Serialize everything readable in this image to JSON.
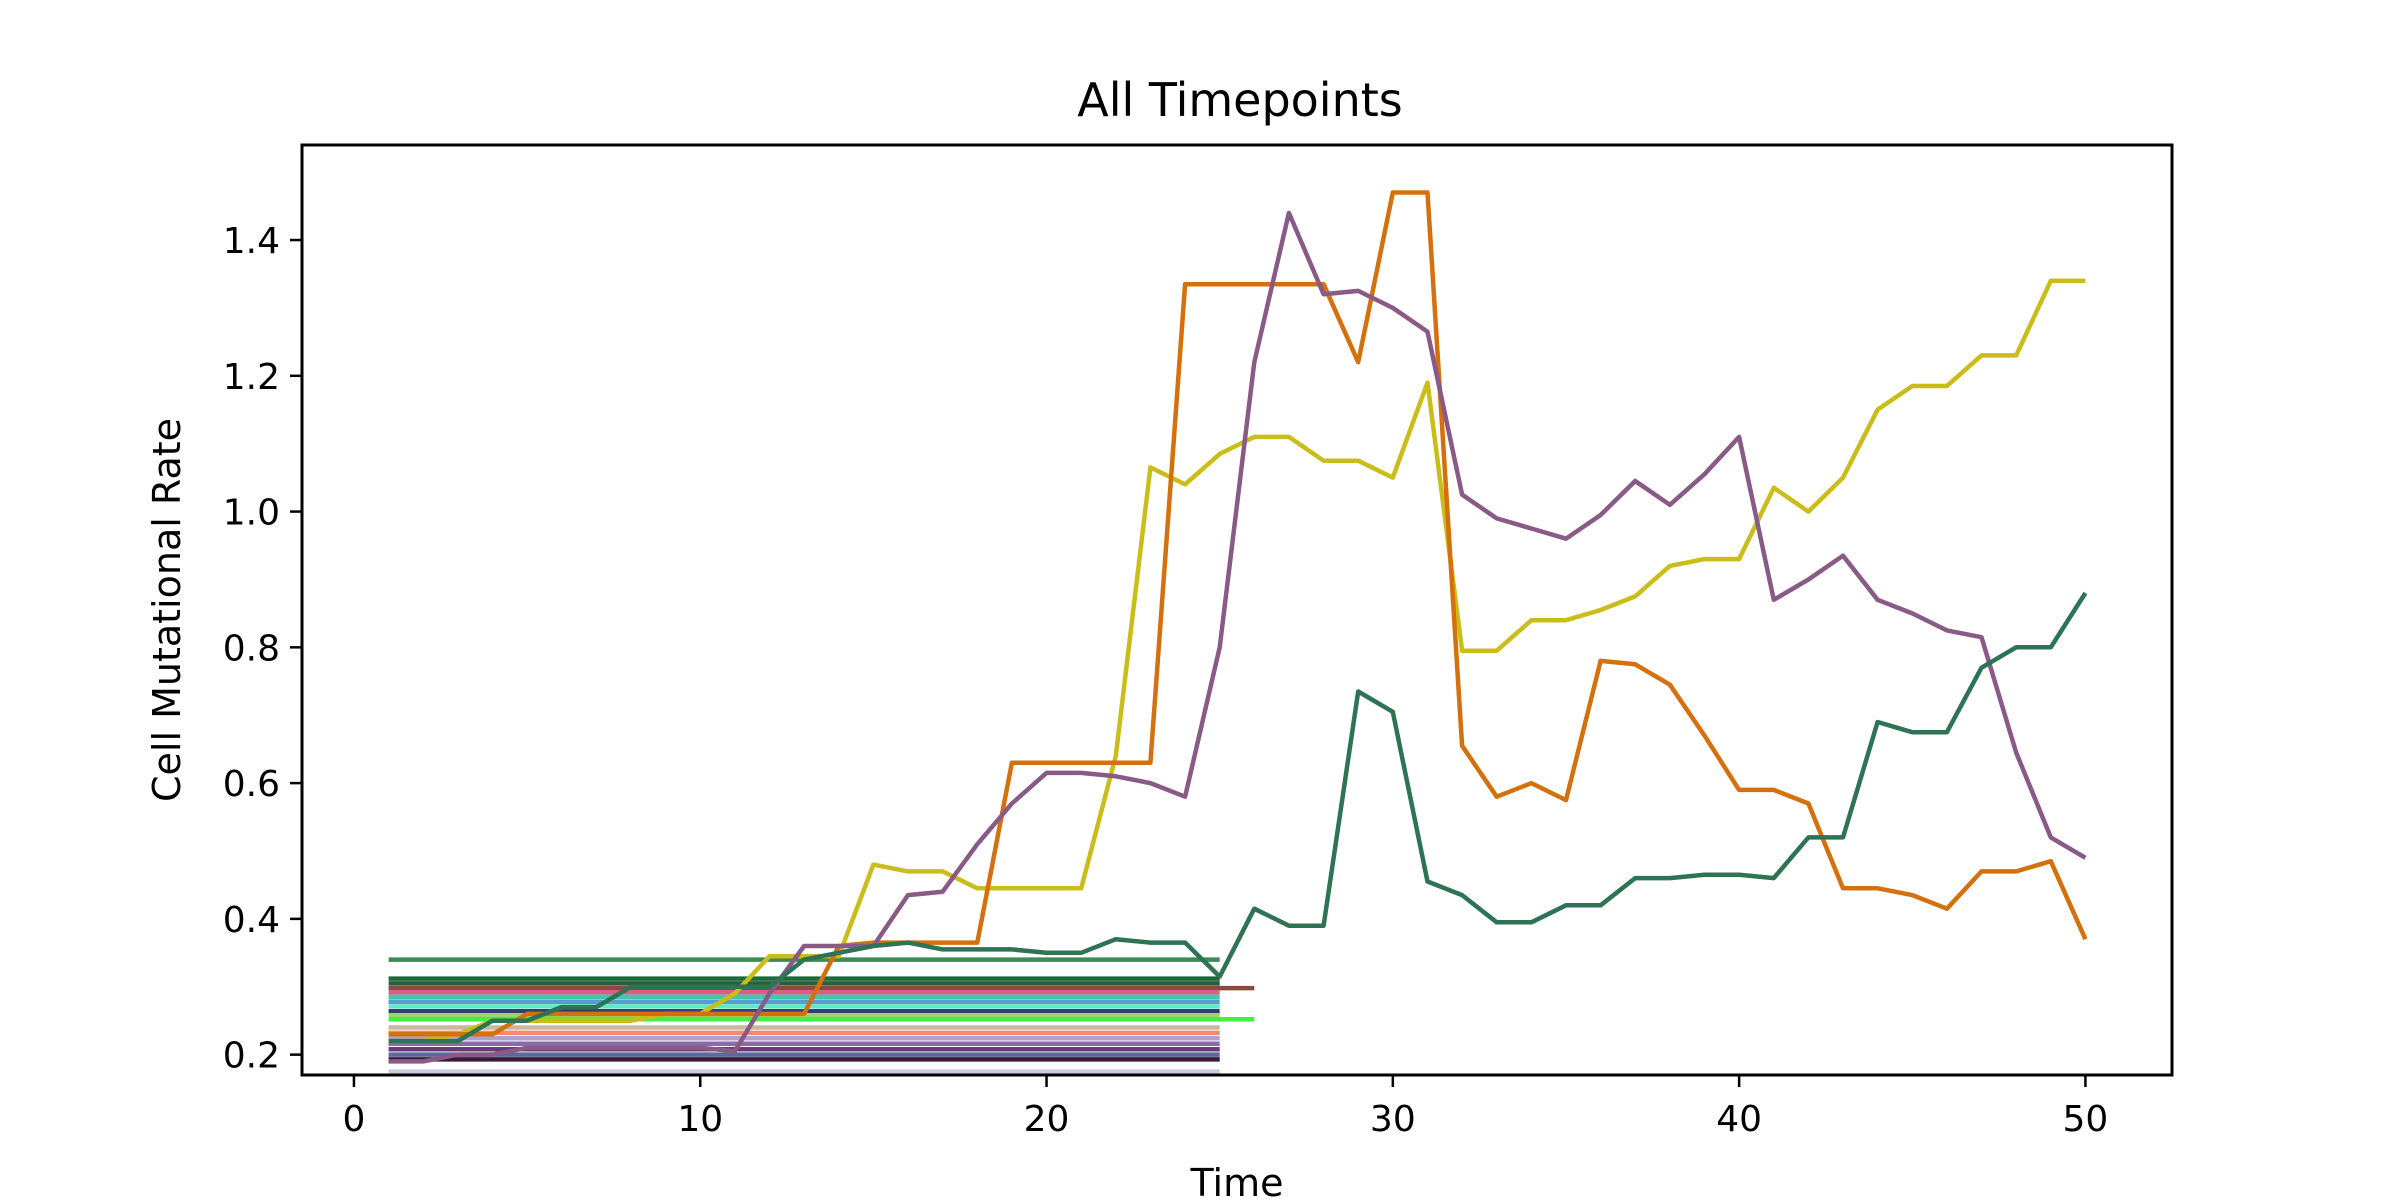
{
  "chart_data": {
    "type": "line",
    "title": "All Timepoints",
    "xlabel": "Time",
    "ylabel": "Cell Mutational Rate",
    "xlim": [
      -1.5,
      52.5
    ],
    "ylim": [
      0.17,
      1.54
    ],
    "xticks": [
      0,
      10,
      20,
      30,
      40,
      50
    ],
    "xtick_labels": [
      "0",
      "10",
      "20",
      "30",
      "40",
      "50"
    ],
    "yticks": [
      0.2,
      0.4,
      0.6,
      0.8,
      1.0,
      1.2,
      1.4
    ],
    "ytick_labels": [
      "0.2",
      "0.4",
      "0.6",
      "0.8",
      "1.0",
      "1.2",
      "1.4"
    ],
    "grid": false,
    "legend": "none",
    "series": [
      {
        "color": "#3d8a55",
        "x": [
          1,
          25
        ],
        "y": [
          0.34,
          0.34
        ]
      },
      {
        "color": "#1e6b3a",
        "x": [
          1,
          25
        ],
        "y": [
          0.312,
          0.312
        ]
      },
      {
        "color": "#2b5e3f",
        "x": [
          1,
          25
        ],
        "y": [
          0.305,
          0.305
        ]
      },
      {
        "color": "#8b4a3c",
        "x": [
          1,
          26
        ],
        "y": [
          0.298,
          0.298
        ]
      },
      {
        "color": "#e05a8a",
        "x": [
          1,
          25
        ],
        "y": [
          0.292,
          0.292
        ]
      },
      {
        "color": "#3ec9a8",
        "x": [
          1,
          25
        ],
        "y": [
          0.285,
          0.285
        ]
      },
      {
        "color": "#5b9bd5",
        "x": [
          1,
          25
        ],
        "y": [
          0.278,
          0.278
        ]
      },
      {
        "color": "#60e8c8",
        "x": [
          1,
          25
        ],
        "y": [
          0.271,
          0.271
        ]
      },
      {
        "color": "#3a3a7a",
        "x": [
          1,
          25
        ],
        "y": [
          0.264,
          0.264
        ]
      },
      {
        "color": "#9bd66a",
        "x": [
          1,
          25
        ],
        "y": [
          0.258,
          0.258
        ]
      },
      {
        "color": "#44ee44",
        "x": [
          1,
          26
        ],
        "y": [
          0.252,
          0.252
        ]
      },
      {
        "color": "#c9b8a0",
        "x": [
          1,
          25
        ],
        "y": [
          0.24,
          0.24
        ]
      },
      {
        "color": "#f08a6a",
        "x": [
          1,
          25
        ],
        "y": [
          0.232,
          0.232
        ]
      },
      {
        "color": "#b0a0d0",
        "x": [
          1,
          25
        ],
        "y": [
          0.224,
          0.224
        ]
      },
      {
        "color": "#8a6aa8",
        "x": [
          1,
          25
        ],
        "y": [
          0.216,
          0.216
        ]
      },
      {
        "color": "#6a3a7a",
        "x": [
          1,
          25
        ],
        "y": [
          0.208,
          0.208
        ]
      },
      {
        "color": "#5a6a9a",
        "x": [
          1,
          25
        ],
        "y": [
          0.2,
          0.2
        ]
      },
      {
        "color": "#3a1a3a",
        "x": [
          1,
          25
        ],
        "y": [
          0.193,
          0.193
        ]
      },
      {
        "color": "#c8cce0",
        "x": [
          1,
          25
        ],
        "y": [
          0.175,
          0.175
        ]
      },
      {
        "color": "#cbbd19",
        "x": [
          1,
          2,
          3,
          4,
          5,
          6,
          7,
          8,
          9,
          10,
          11,
          12,
          13,
          14,
          15,
          16,
          17,
          18,
          19,
          20,
          21,
          22,
          23,
          24,
          25,
          26,
          27,
          28,
          29,
          30,
          31,
          32,
          33,
          34,
          35,
          36,
          37,
          38,
          39,
          40,
          41,
          42,
          43,
          44,
          45,
          46,
          47,
          48,
          49,
          50
        ],
        "y": [
          0.22,
          0.22,
          0.23,
          0.25,
          0.25,
          0.25,
          0.25,
          0.25,
          0.26,
          0.26,
          0.29,
          0.345,
          0.345,
          0.345,
          0.48,
          0.47,
          0.47,
          0.445,
          0.445,
          0.445,
          0.445,
          0.64,
          1.065,
          1.04,
          1.085,
          1.11,
          1.11,
          1.075,
          1.075,
          1.05,
          1.19,
          0.795,
          0.795,
          0.84,
          0.84,
          0.855,
          0.875,
          0.92,
          0.93,
          0.93,
          1.035,
          1.0,
          1.05,
          1.15,
          1.185,
          1.185,
          1.23,
          1.23,
          1.34,
          1.34
        ]
      },
      {
        "color": "#d4700d",
        "x": [
          1,
          2,
          3,
          4,
          5,
          6,
          7,
          8,
          9,
          10,
          11,
          12,
          13,
          14,
          15,
          16,
          17,
          18,
          19,
          20,
          21,
          22,
          23,
          24,
          25,
          26,
          27,
          28,
          29,
          30,
          31,
          32,
          33,
          34,
          35,
          36,
          37,
          38,
          39,
          40,
          41,
          42,
          43,
          44,
          45,
          46,
          47,
          48,
          49,
          50
        ],
        "y": [
          0.23,
          0.23,
          0.23,
          0.23,
          0.26,
          0.26,
          0.26,
          0.26,
          0.26,
          0.26,
          0.26,
          0.26,
          0.26,
          0.36,
          0.365,
          0.365,
          0.365,
          0.365,
          0.63,
          0.63,
          0.63,
          0.63,
          0.63,
          1.335,
          1.335,
          1.335,
          1.335,
          1.335,
          1.22,
          1.47,
          1.47,
          0.655,
          0.58,
          0.6,
          0.575,
          0.78,
          0.775,
          0.745,
          0.67,
          0.59,
          0.59,
          0.57,
          0.445,
          0.445,
          0.435,
          0.415,
          0.47,
          0.47,
          0.485,
          0.37
        ]
      },
      {
        "color": "#8a5a86",
        "x": [
          1,
          2,
          3,
          4,
          5,
          6,
          7,
          8,
          9,
          10,
          11,
          12,
          13,
          14,
          15,
          16,
          17,
          18,
          19,
          20,
          21,
          22,
          23,
          24,
          25,
          26,
          27,
          28,
          29,
          30,
          31,
          32,
          33,
          34,
          35,
          36,
          37,
          38,
          39,
          40,
          41,
          42,
          43,
          44,
          45,
          46,
          47,
          48,
          49,
          50
        ],
        "y": [
          0.19,
          0.19,
          0.2,
          0.2,
          0.21,
          0.21,
          0.21,
          0.21,
          0.21,
          0.21,
          0.205,
          0.29,
          0.36,
          0.36,
          0.36,
          0.435,
          0.44,
          0.51,
          0.57,
          0.615,
          0.615,
          0.61,
          0.6,
          0.58,
          0.8,
          1.22,
          1.44,
          1.32,
          1.325,
          1.3,
          1.265,
          1.025,
          0.99,
          0.975,
          0.96,
          0.995,
          1.045,
          1.01,
          1.055,
          1.11,
          0.87,
          0.9,
          0.935,
          0.87,
          0.85,
          0.825,
          0.815,
          0.645,
          0.52,
          0.49
        ]
      },
      {
        "color": "#2d7354",
        "x": [
          1,
          2,
          3,
          4,
          5,
          6,
          7,
          8,
          9,
          10,
          11,
          12,
          13,
          14,
          15,
          16,
          17,
          18,
          19,
          20,
          21,
          22,
          23,
          24,
          25,
          26,
          27,
          28,
          29,
          30,
          31,
          32,
          33,
          34,
          35,
          36,
          37,
          38,
          39,
          40,
          41,
          42,
          43,
          44,
          45,
          46,
          47,
          48,
          49,
          50
        ],
        "y": [
          0.22,
          0.22,
          0.22,
          0.25,
          0.25,
          0.27,
          0.27,
          0.3,
          0.3,
          0.3,
          0.3,
          0.3,
          0.34,
          0.35,
          0.36,
          0.365,
          0.355,
          0.355,
          0.355,
          0.35,
          0.35,
          0.37,
          0.365,
          0.365,
          0.315,
          0.415,
          0.39,
          0.39,
          0.735,
          0.705,
          0.455,
          0.435,
          0.395,
          0.395,
          0.42,
          0.42,
          0.46,
          0.46,
          0.465,
          0.465,
          0.46,
          0.52,
          0.52,
          0.69,
          0.675,
          0.675,
          0.77,
          0.8,
          0.8,
          0.88
        ]
      }
    ]
  }
}
